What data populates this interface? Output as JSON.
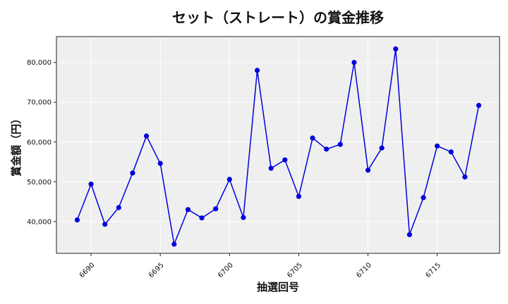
{
  "chart_data": {
    "type": "line",
    "title": "セット（ストレート）の賞金推移",
    "xlabel": "抽選回号",
    "ylabel": "賞金額（円）",
    "xlim": [
      6687.5,
      6719.5
    ],
    "ylim": [
      32000,
      86500
    ],
    "x_ticks": [
      6690,
      6695,
      6700,
      6705,
      6710,
      6715
    ],
    "y_ticks": [
      40000,
      50000,
      60000,
      70000,
      80000
    ],
    "y_tick_labels": [
      "40,000",
      "50,000",
      "60,000",
      "70,000",
      "80,000"
    ],
    "grid": true,
    "line_color": "#0000dd",
    "marker_color": "#0000dd",
    "plot_background": "#efefef",
    "series": [
      {
        "x": [
          6689,
          6690,
          6691,
          6692,
          6693,
          6694,
          6695,
          6696,
          6697,
          6698,
          6699,
          6700,
          6701,
          6702,
          6703,
          6704,
          6705,
          6706,
          6707,
          6708,
          6709,
          6710,
          6711,
          6712,
          6713,
          6714,
          6715,
          6716,
          6717,
          6718
        ],
        "values": [
          40400,
          49400,
          39300,
          43500,
          52200,
          61500,
          54600,
          34300,
          43000,
          40900,
          43200,
          50600,
          41000,
          78000,
          53400,
          55500,
          46300,
          61000,
          58200,
          59400,
          80000,
          52900,
          58500,
          83400,
          36700,
          46000,
          59000,
          57500,
          51200,
          69200
        ]
      }
    ]
  }
}
